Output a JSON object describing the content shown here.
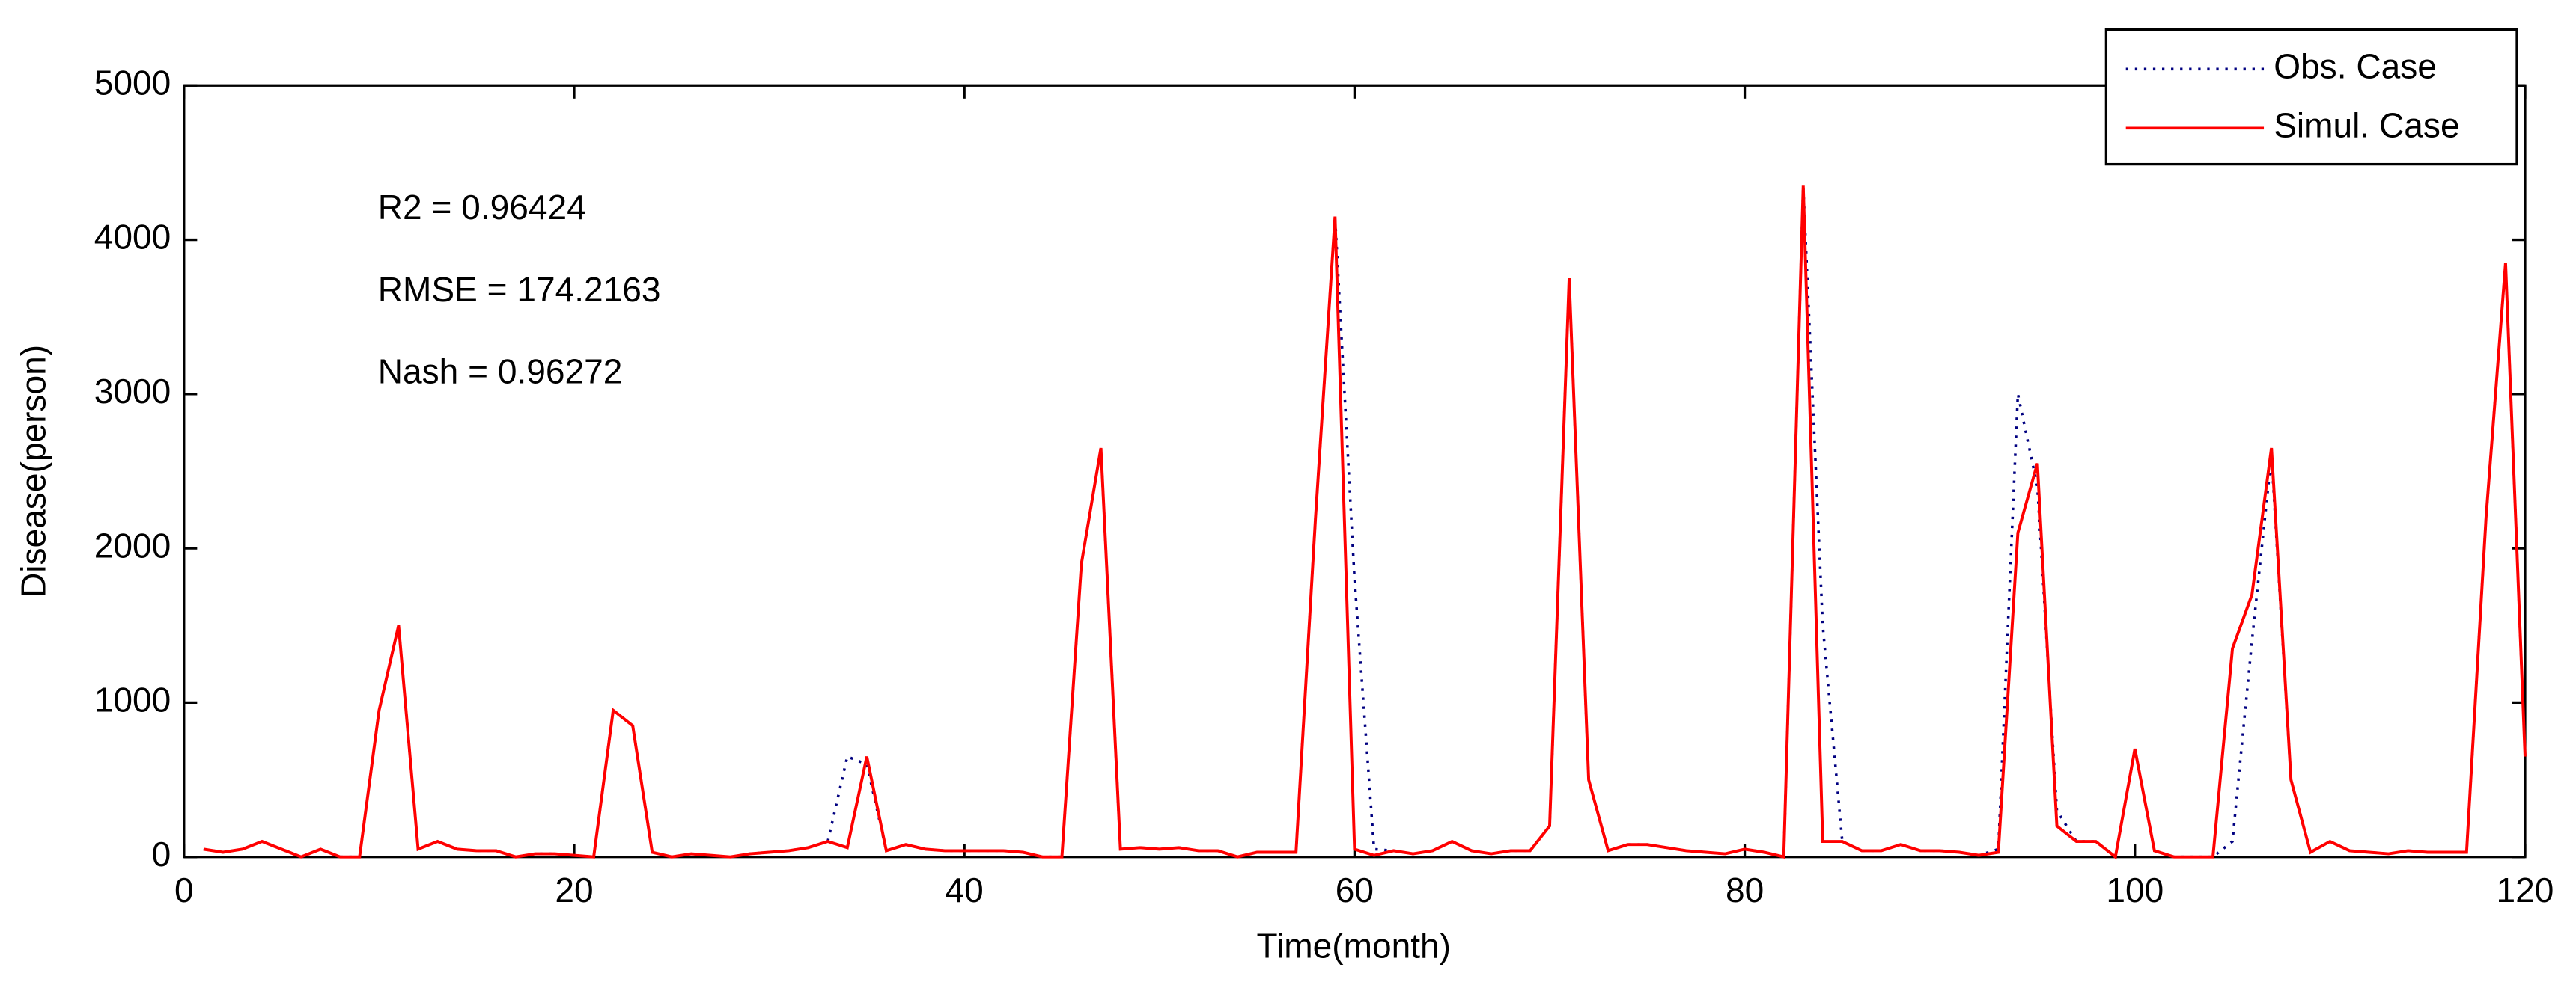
{
  "chart_data": {
    "type": "line",
    "xlabel": "Time(month)",
    "ylabel": "Disease(person)",
    "annotations": [
      "R2 = 0.96424",
      "RMSE = 174.2163",
      "Nash = 0.96272"
    ],
    "xlim": [
      0,
      120
    ],
    "ylim": [
      0,
      5000
    ],
    "xticks": [
      0,
      20,
      40,
      60,
      80,
      100,
      120
    ],
    "yticks": [
      0,
      1000,
      2000,
      3000,
      4000,
      5000
    ],
    "legend": "upper right",
    "x": [
      1,
      2,
      3,
      4,
      5,
      6,
      7,
      8,
      9,
      10,
      11,
      12,
      13,
      14,
      15,
      16,
      17,
      18,
      19,
      20,
      21,
      22,
      23,
      24,
      25,
      26,
      27,
      28,
      29,
      30,
      31,
      32,
      33,
      34,
      35,
      36,
      37,
      38,
      39,
      40,
      41,
      42,
      43,
      44,
      45,
      46,
      47,
      48,
      49,
      50,
      51,
      52,
      53,
      54,
      55,
      56,
      57,
      58,
      59,
      60,
      61,
      62,
      63,
      64,
      65,
      66,
      67,
      68,
      69,
      70,
      71,
      72,
      73,
      74,
      75,
      76,
      77,
      78,
      79,
      80,
      81,
      82,
      83,
      84,
      85,
      86,
      87,
      88,
      89,
      90,
      91,
      92,
      93,
      94,
      95,
      96,
      97,
      98,
      99,
      100,
      101,
      102,
      103,
      104,
      105,
      106,
      107,
      108,
      109,
      110,
      111,
      112,
      113,
      114,
      115,
      116,
      117,
      118,
      119,
      120
    ],
    "series": [
      {
        "name": "Obs. Case",
        "color": "#000080",
        "style": "dotted",
        "values": [
          50,
          30,
          50,
          100,
          50,
          0,
          50,
          0,
          0,
          950,
          1500,
          50,
          100,
          50,
          40,
          40,
          0,
          20,
          20,
          10,
          0,
          950,
          850,
          30,
          0,
          20,
          10,
          0,
          20,
          30,
          40,
          60,
          100,
          650,
          600,
          40,
          80,
          50,
          40,
          40,
          40,
          40,
          30,
          0,
          0,
          1900,
          2650,
          50,
          60,
          50,
          60,
          40,
          40,
          0,
          30,
          30,
          30,
          2200,
          4150,
          1800,
          50,
          40,
          20,
          40,
          100,
          40,
          20,
          40,
          40,
          200,
          3750,
          500,
          40,
          80,
          80,
          60,
          40,
          30,
          20,
          50,
          30,
          0,
          4350,
          1500,
          100,
          40,
          40,
          80,
          40,
          40,
          30,
          10,
          50,
          3000,
          2400,
          300,
          100,
          100,
          0,
          700,
          40,
          0,
          0,
          0,
          100,
          1400,
          2600,
          500,
          30,
          100,
          40,
          30,
          20,
          40,
          30,
          30,
          30,
          2200,
          3850,
          650
        ]
      },
      {
        "name": "Simul. Case",
        "color": "#ff0000",
        "style": "solid",
        "values": [
          50,
          30,
          50,
          100,
          50,
          0,
          50,
          0,
          0,
          950,
          1500,
          50,
          100,
          50,
          40,
          40,
          0,
          20,
          20,
          10,
          0,
          950,
          850,
          30,
          0,
          20,
          10,
          0,
          20,
          30,
          40,
          60,
          100,
          60,
          650,
          40,
          80,
          50,
          40,
          40,
          40,
          40,
          30,
          0,
          0,
          1900,
          2650,
          50,
          60,
          50,
          60,
          40,
          40,
          0,
          30,
          30,
          30,
          2200,
          4150,
          50,
          10,
          40,
          20,
          40,
          100,
          40,
          20,
          40,
          40,
          200,
          3750,
          500,
          40,
          80,
          80,
          60,
          40,
          30,
          20,
          50,
          30,
          0,
          4350,
          100,
          100,
          40,
          40,
          80,
          40,
          40,
          30,
          10,
          30,
          2100,
          2550,
          200,
          100,
          100,
          0,
          700,
          40,
          0,
          0,
          0,
          1350,
          1700,
          2650,
          500,
          30,
          100,
          40,
          30,
          20,
          40,
          30,
          30,
          30,
          2200,
          3850,
          650
        ]
      }
    ]
  }
}
